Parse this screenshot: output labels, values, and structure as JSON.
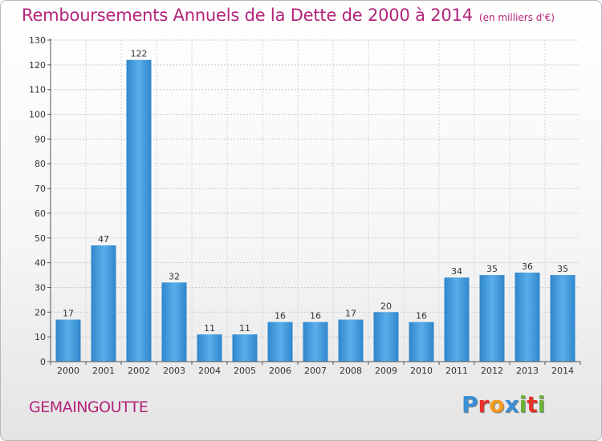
{
  "title": "Remboursements Annuels de la Dette de 2000 à 2014",
  "title_unit": "(en milliers d'€)",
  "commune": "GEMAINGOUTTE",
  "logo": {
    "text": "Proxiti",
    "letter_colors": [
      "#3a8fd6",
      "#e8312a",
      "#f29a1c",
      "#3a8fd6",
      "#6bb33a",
      "#e8312a",
      "#6bb33a"
    ]
  },
  "chart_data": {
    "type": "bar",
    "title": "Remboursements Annuels de la Dette de 2000 à 2014",
    "categories": [
      "2000",
      "2001",
      "2002",
      "2003",
      "2004",
      "2005",
      "2006",
      "2007",
      "2008",
      "2009",
      "2010",
      "2011",
      "2012",
      "2013",
      "2014"
    ],
    "values": [
      17,
      47,
      122,
      32,
      11,
      11,
      16,
      16,
      17,
      20,
      16,
      34,
      35,
      36,
      35
    ],
    "ylim": [
      0,
      130
    ],
    "yticks": [
      0,
      10,
      20,
      30,
      40,
      50,
      60,
      70,
      80,
      90,
      100,
      110,
      120,
      130
    ],
    "grid": true,
    "bar_color": "#4a9ee0",
    "bar_color_dark": "#2a7fc4"
  }
}
